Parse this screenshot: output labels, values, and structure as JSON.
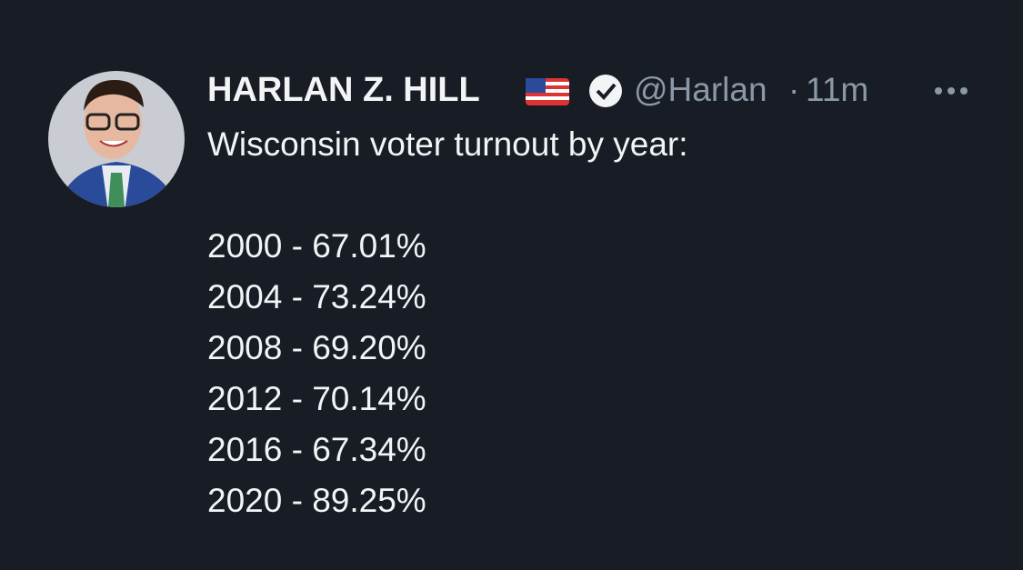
{
  "tweet": {
    "author": "HARLAN Z. HILL",
    "handle": "@Harlan",
    "separator": "·",
    "time": "11m",
    "text_heading": "Wisconsin voter turnout by year:",
    "lines": [
      "2000 - 67.01%",
      "2004 - 73.24%",
      "2008 - 69.20%",
      "2012 - 70.14%",
      "2016 - 67.34%",
      "2020 - 89.25%"
    ]
  }
}
